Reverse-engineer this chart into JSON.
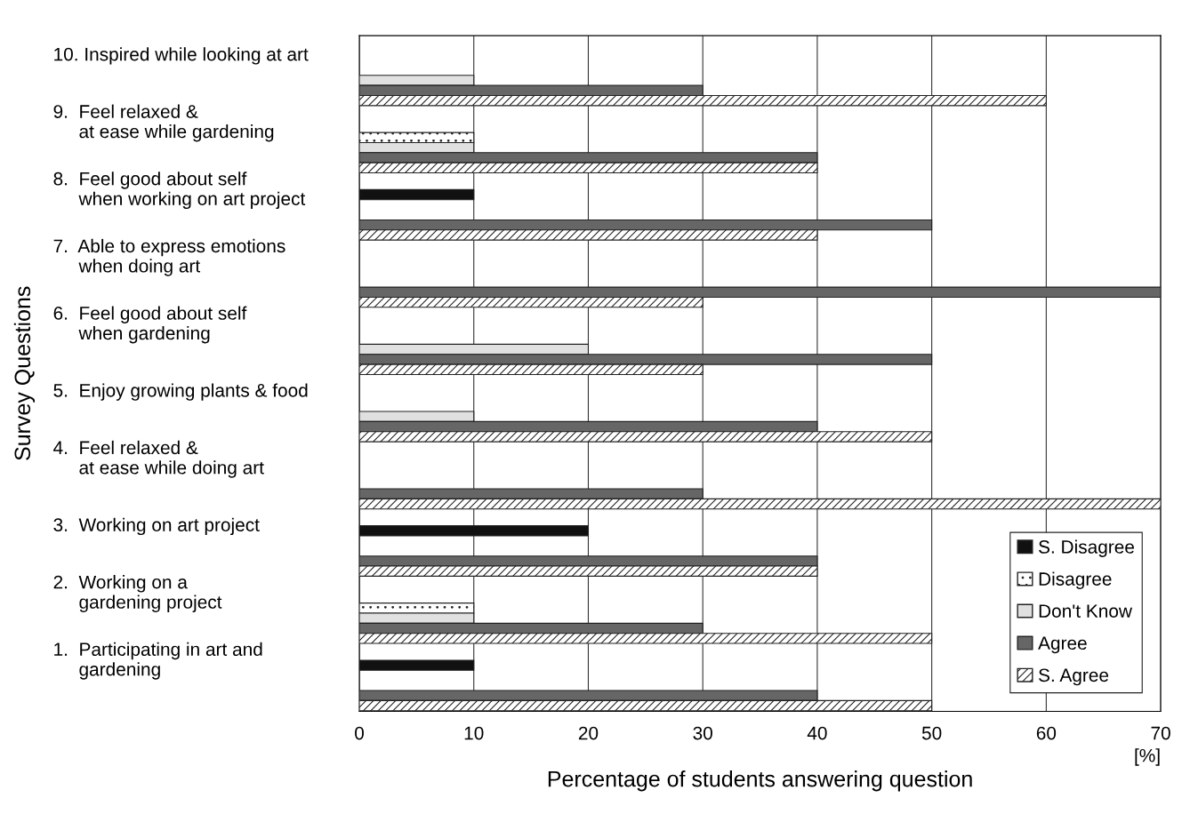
{
  "chart_data": {
    "type": "bar",
    "orientation": "horizontal",
    "categories": [
      "10. Inspired while looking at art",
      "9.  Feel relaxed &\n     at ease while gardening",
      "8.  Feel good about self\n     when working on art project",
      "7.  Able to express emotions\n     when doing art",
      "6.  Feel good about self\n     when gardening",
      "5.  Enjoy growing plants & food",
      "4.  Feel relaxed &\n     at ease while doing art",
      "3.  Working on art project",
      "2.  Working on a\n     gardening project",
      "1.  Participating in art and\n     gardening"
    ],
    "series": [
      {
        "name": "S. Disagree",
        "color": "#111111",
        "values": [
          0,
          0,
          10,
          0,
          0,
          0,
          0,
          20,
          0,
          10
        ]
      },
      {
        "name": "Disagree",
        "color": "#222222",
        "values": [
          0,
          10,
          0,
          0,
          0,
          0,
          0,
          0,
          10,
          0
        ]
      },
      {
        "name": "Don't Know",
        "color": "#e0e0e0",
        "values": [
          10,
          10,
          0,
          0,
          20,
          10,
          0,
          0,
          10,
          0
        ]
      },
      {
        "name": "Agree",
        "color": "#666666",
        "values": [
          30,
          40,
          50,
          70,
          50,
          40,
          30,
          40,
          30,
          40
        ]
      },
      {
        "name": "S. Agree",
        "color": "#222222",
        "values": [
          60,
          40,
          40,
          30,
          30,
          50,
          70,
          40,
          50,
          50
        ]
      }
    ],
    "xlim": [
      0,
      70
    ],
    "xticks": [
      0,
      10,
      20,
      30,
      40,
      50,
      60,
      70
    ],
    "xlabel": "Percentage of students answering question",
    "ylabel": "Survey Questions",
    "annotations": [
      "[%]"
    ],
    "grid": "x",
    "legend": "bottom right"
  }
}
